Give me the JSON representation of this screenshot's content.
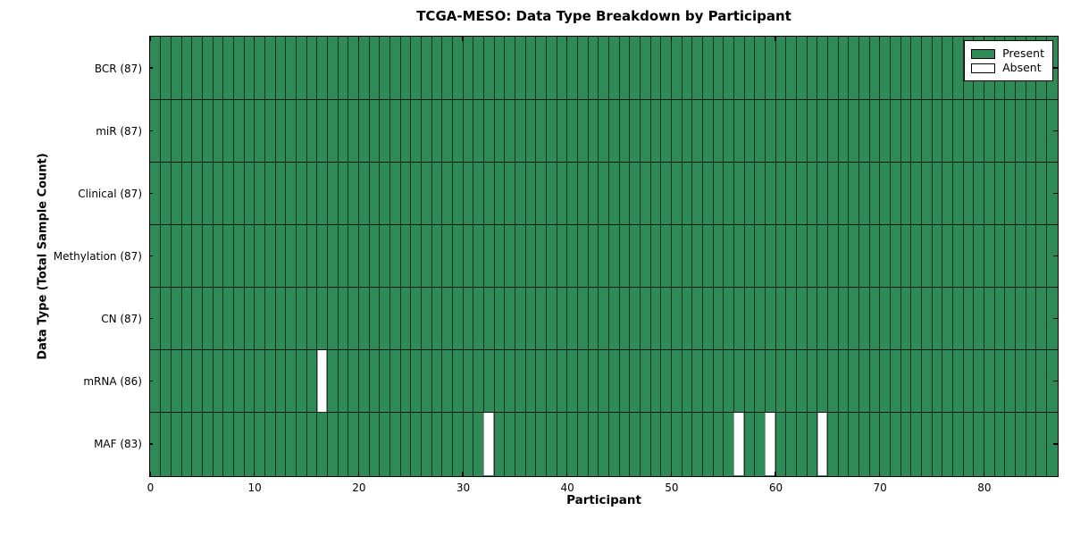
{
  "chart_data": {
    "type": "heatmap",
    "title": "TCGA-MESO: Data Type Breakdown by Participant",
    "xlabel": "Participant",
    "ylabel": "Data Type (Total Sample Count)",
    "xlim": [
      0,
      87
    ],
    "x_ticks": [
      0,
      10,
      20,
      30,
      40,
      50,
      60,
      70,
      80
    ],
    "n_participants": 87,
    "grid": true,
    "colors": {
      "present": "#2e8b57",
      "absent": "#ffffff",
      "grid_line": "#000000"
    },
    "legend": {
      "position": "upper right",
      "entries": [
        {
          "label": "Present",
          "color": "#2e8b57"
        },
        {
          "label": "Absent",
          "color": "#ffffff"
        }
      ]
    },
    "rows": [
      {
        "label": "BCR (87)",
        "data_type": "BCR",
        "present_count": 87,
        "absent_participants": []
      },
      {
        "label": "miR (87)",
        "data_type": "miR",
        "present_count": 87,
        "absent_participants": []
      },
      {
        "label": "Clinical (87)",
        "data_type": "Clinical",
        "present_count": 87,
        "absent_participants": []
      },
      {
        "label": "Methylation (87)",
        "data_type": "Methylation",
        "present_count": 87,
        "absent_participants": []
      },
      {
        "label": "CN (87)",
        "data_type": "CN",
        "present_count": 87,
        "absent_participants": []
      },
      {
        "label": "mRNA (86)",
        "data_type": "mRNA",
        "present_count": 86,
        "absent_participants": [
          16
        ]
      },
      {
        "label": "MAF (83)",
        "data_type": "MAF",
        "present_count": 83,
        "absent_participants": [
          32,
          56,
          59,
          64
        ]
      }
    ]
  }
}
